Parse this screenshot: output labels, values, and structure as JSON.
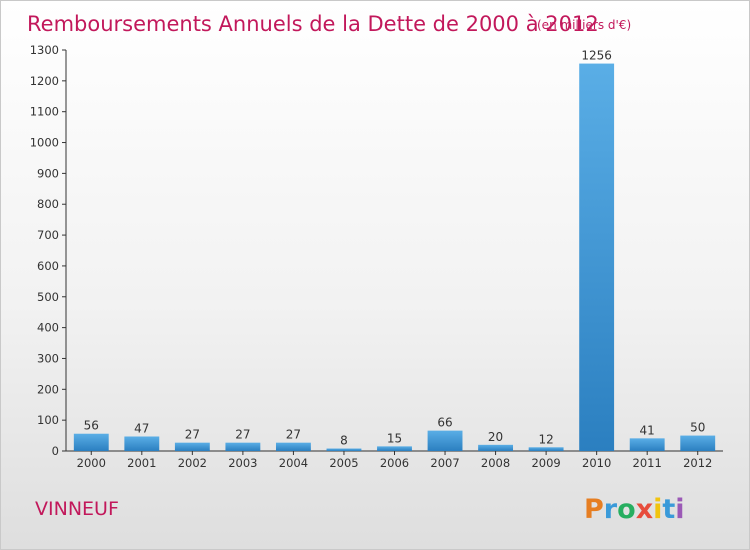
{
  "title": "Remboursements Annuels de la Dette de 2000 à 2012",
  "unit_note": "(en milliers d'€)",
  "commune": "VINNEUF",
  "logo_text": "Proxiti",
  "colors": {
    "bar_light": "#5aaee6",
    "bar_dark": "#2b7fc0",
    "title": "#c2185b",
    "axis": "#333333",
    "logo": [
      "#e67e22",
      "#3a9ad9",
      "#27ae60",
      "#e74c3c",
      "#f1c40f",
      "#3a9ad9",
      "#9b59b6"
    ]
  },
  "chart_data": {
    "type": "bar",
    "title": "Remboursements Annuels de la Dette de 2000 à 2012",
    "xlabel": "",
    "ylabel": "",
    "categories": [
      "2000",
      "2001",
      "2002",
      "2003",
      "2004",
      "2005",
      "2006",
      "2007",
      "2008",
      "2009",
      "2010",
      "2011",
      "2012"
    ],
    "values": [
      56,
      47,
      27,
      27,
      27,
      8,
      15,
      66,
      20,
      12,
      1256,
      41,
      50
    ],
    "ylim": [
      0,
      1300
    ],
    "yticks": [
      0,
      100,
      200,
      300,
      400,
      500,
      600,
      700,
      800,
      900,
      1000,
      1100,
      1200,
      1300
    ],
    "grid": false,
    "legend": "none"
  }
}
